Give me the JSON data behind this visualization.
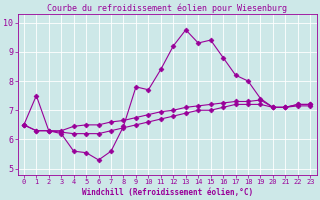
{
  "title": "Courbe du refroidissement éolien pour Wiesenburg",
  "xlabel": "Windchill (Refroidissement éolien,°C)",
  "bg_color": "#cde8e8",
  "line_color": "#990099",
  "border_color": "#990099",
  "xlim": [
    -0.5,
    23.5
  ],
  "ylim": [
    4.8,
    10.3
  ],
  "yticks": [
    5,
    6,
    7,
    8,
    9,
    10
  ],
  "xticks": [
    0,
    1,
    2,
    3,
    4,
    5,
    6,
    7,
    8,
    9,
    10,
    11,
    12,
    13,
    14,
    15,
    16,
    17,
    18,
    19,
    20,
    21,
    22,
    23
  ],
  "line1_x": [
    0,
    1,
    2,
    3,
    4,
    5,
    6,
    7,
    8,
    9,
    10,
    11,
    12,
    13,
    14,
    15,
    16,
    17,
    18,
    19,
    20,
    21,
    22,
    23
  ],
  "line1_y": [
    6.5,
    7.5,
    6.3,
    6.2,
    5.6,
    5.55,
    5.3,
    5.6,
    6.45,
    7.8,
    7.7,
    8.4,
    9.2,
    9.75,
    9.3,
    9.4,
    8.8,
    8.2,
    8.0,
    7.4,
    7.1,
    7.1,
    7.2,
    7.2
  ],
  "line2_x": [
    0,
    1,
    2,
    3,
    4,
    5,
    6,
    7,
    8,
    9,
    10,
    11,
    12,
    13,
    14,
    15,
    16,
    17,
    18,
    19,
    20,
    21,
    22,
    23
  ],
  "line2_y": [
    6.5,
    6.3,
    6.3,
    6.3,
    6.45,
    6.5,
    6.5,
    6.6,
    6.65,
    6.75,
    6.85,
    6.95,
    7.0,
    7.1,
    7.15,
    7.2,
    7.25,
    7.3,
    7.3,
    7.35,
    7.1,
    7.1,
    7.2,
    7.2
  ],
  "line3_x": [
    0,
    1,
    2,
    3,
    4,
    5,
    6,
    7,
    8,
    9,
    10,
    11,
    12,
    13,
    14,
    15,
    16,
    17,
    18,
    19,
    20,
    21,
    22,
    23
  ],
  "line3_y": [
    6.5,
    6.3,
    6.3,
    6.25,
    6.2,
    6.2,
    6.2,
    6.3,
    6.4,
    6.5,
    6.6,
    6.7,
    6.8,
    6.9,
    7.0,
    7.0,
    7.1,
    7.2,
    7.2,
    7.2,
    7.1,
    7.1,
    7.15,
    7.15
  ],
  "title_fontsize": 6,
  "xlabel_fontsize": 5.5,
  "tick_fontsize": 5,
  "marker_size": 2.5,
  "line_width": 0.8
}
